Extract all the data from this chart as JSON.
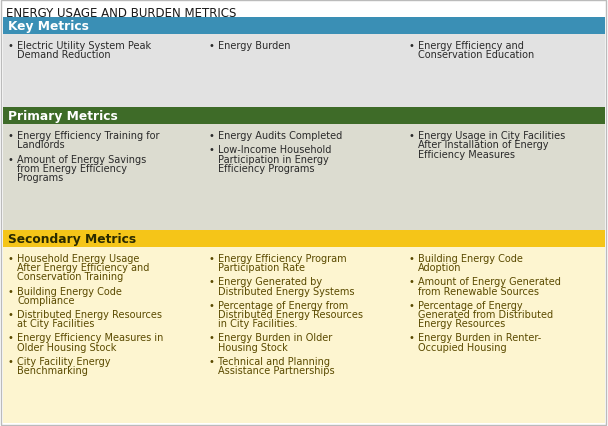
{
  "title": "ENERGY USAGE AND BURDEN METRICS",
  "title_color": "#1a1a1a",
  "title_fontsize": 8.5,
  "bg_color": "#ffffff",
  "sections": [
    {
      "header": "Key Metrics",
      "header_bg": "#3a8fb5",
      "header_text_color": "#ffffff",
      "row_bg": "#e2e2e2",
      "text_color": "#2a2a2a",
      "cols": [
        [
          "Electric Utility System Peak\nDemand Reduction"
        ],
        [
          "Energy Burden"
        ],
        [
          "Energy Efficiency and\nConservation Education"
        ]
      ]
    },
    {
      "header": "Primary Metrics",
      "header_bg": "#3e6b28",
      "header_text_color": "#ffffff",
      "row_bg": "#dcdcd0",
      "text_color": "#2a2a2a",
      "cols": [
        [
          "Energy Efficiency Training for\nLandlords",
          "Amount of Energy Savings\nfrom Energy Efficiency\nPrograms"
        ],
        [
          "Energy Audits Completed",
          "Low-Income Household\nParticipation in Energy\nEfficiency Programs"
        ],
        [
          "Energy Usage in City Facilities\nAfter Installation of Energy\nEfficiency Measures",
          ""
        ]
      ]
    },
    {
      "header": "Secondary Metrics",
      "header_bg": "#f5c518",
      "header_text_color": "#2a2a00",
      "row_bg": "#fdf5d0",
      "text_color": "#5a4a00",
      "cols": [
        [
          "Household Energy Usage\nAfter Energy Efficiency and\nConservation Training",
          "Building Energy Code\nCompliance",
          "Distributed Energy Resources\nat City Facilities",
          "Energy Efficiency Measures in\nOlder Housing Stock",
          "City Facility Energy\nBenchmarking"
        ],
        [
          "Energy Efficiency Program\nParticipation Rate",
          "Energy Generated by\nDistributed Energy Systems",
          "Percentage of Energy from\nDistributed Energy Resources\nin City Facilities.",
          "Energy Burden in Older\nHousing Stock",
          "Technical and Planning\nAssistance Partnerships"
        ],
        [
          "Building Energy Code\nAdoption",
          "Amount of Energy Generated\nfrom Renewable Sources",
          "Percentage of Energy\nGenerated from Distributed\nEnergy Resources",
          "Energy Burden in Renter-\nOccupied Housing",
          ""
        ]
      ]
    }
  ]
}
